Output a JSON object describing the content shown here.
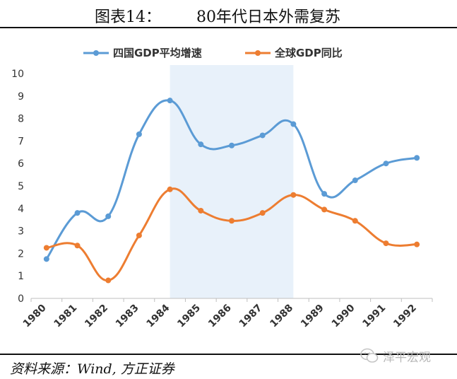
{
  "header": {
    "figure_no": "图表14：",
    "title": "80年代日本外需复苏"
  },
  "footer": {
    "source": "资料来源：Wind, 方正证券",
    "watermark": "泽平宏观"
  },
  "colors": {
    "series1": "#5b9bd5",
    "series2": "#ed7d31",
    "highlight": "#e8f1fa",
    "axis": "#bfbfbf"
  },
  "chart_data": {
    "type": "line",
    "title": "",
    "xlabel": "",
    "ylabel": "",
    "x": [
      "1980",
      "1981",
      "1982",
      "1983",
      "1984",
      "1985",
      "1986",
      "1987",
      "1988",
      "1989",
      "1990",
      "1991",
      "1992"
    ],
    "ylim": [
      0,
      10
    ],
    "yticks": [
      "0",
      "1",
      "2",
      "3",
      "4",
      "5",
      "6",
      "7",
      "8",
      "9",
      "10"
    ],
    "grid": false,
    "legend_position": "top",
    "highlight_range": [
      "1984",
      "1988"
    ],
    "series": [
      {
        "name": "四国GDP平均增速",
        "values": [
          1.75,
          3.8,
          3.65,
          7.3,
          8.8,
          6.85,
          6.8,
          7.25,
          7.75,
          4.65,
          5.25,
          6.0,
          6.25
        ]
      },
      {
        "name": "全球GDP同比",
        "values": [
          2.25,
          2.35,
          0.8,
          2.8,
          4.85,
          3.9,
          3.45,
          3.8,
          4.6,
          3.95,
          3.45,
          2.45,
          2.4
        ]
      }
    ]
  }
}
